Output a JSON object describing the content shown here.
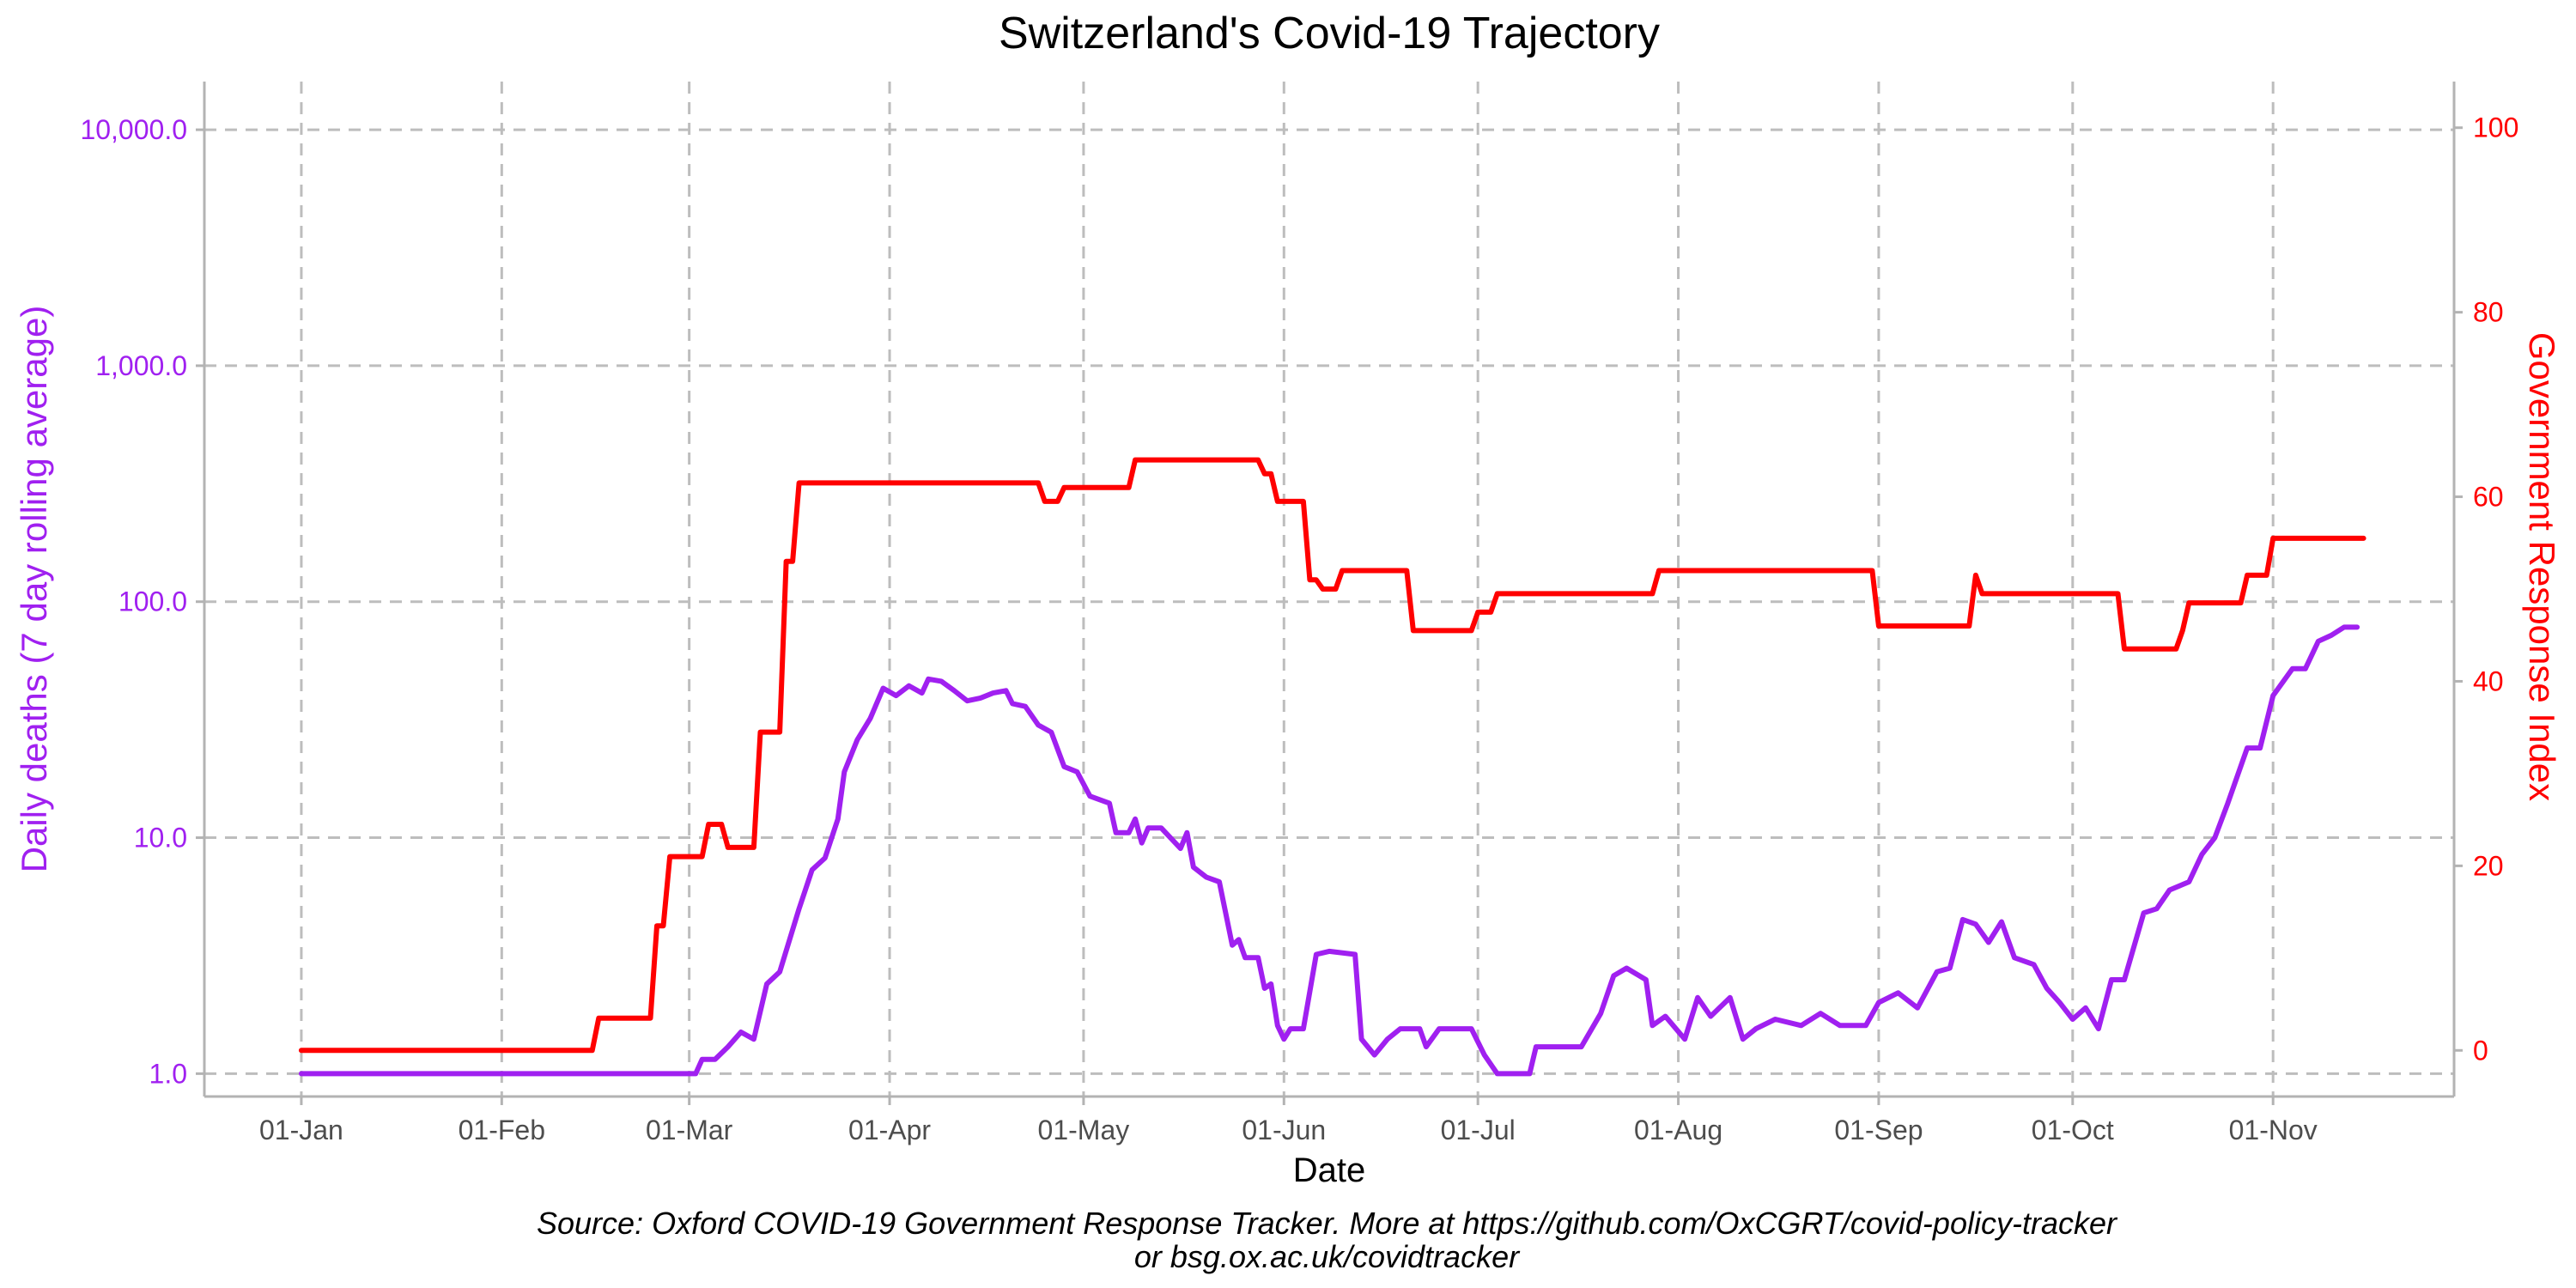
{
  "chart_data": {
    "type": "line",
    "title": "Switzerland's Covid-19 Trajectory",
    "xlabel": "Date",
    "ylabel_left": "Daily deaths (7 day rolling average)",
    "ylabel_right": "Government Response Index",
    "caption_line1": "Source: Oxford COVID-19 Government Response Tracker. More at https://github.com/OxCGRT/covid-policy-tracker",
    "caption_line2": "or bsg.ox.ac.uk/covidtracker",
    "grid": true,
    "colors": {
      "deaths": "#a020f0",
      "index": "#ff0000",
      "grid": "#bdbdbd",
      "axis": "#b3b3b3",
      "tick_text": "#4d4d4d"
    },
    "x_range": [
      "2019-12-17",
      "2020-11-29"
    ],
    "x_ticks": [
      {
        "date": "2020-01-01",
        "label": "01-Jan"
      },
      {
        "date": "2020-02-01",
        "label": "01-Feb"
      },
      {
        "date": "2020-03-01",
        "label": "01-Mar"
      },
      {
        "date": "2020-04-01",
        "label": "01-Apr"
      },
      {
        "date": "2020-05-01",
        "label": "01-May"
      },
      {
        "date": "2020-06-01",
        "label": "01-Jun"
      },
      {
        "date": "2020-07-01",
        "label": "01-Jul"
      },
      {
        "date": "2020-08-01",
        "label": "01-Aug"
      },
      {
        "date": "2020-09-01",
        "label": "01-Sep"
      },
      {
        "date": "2020-10-01",
        "label": "01-Oct"
      },
      {
        "date": "2020-11-01",
        "label": "01-Nov"
      }
    ],
    "y_left": {
      "scale": "log10",
      "range": [
        0.8,
        16000
      ],
      "ticks": [
        {
          "value": 1,
          "label": "1.0"
        },
        {
          "value": 10,
          "label": "10.0"
        },
        {
          "value": 100,
          "label": "100.0"
        },
        {
          "value": 1000,
          "label": "1,000.0"
        },
        {
          "value": 10000,
          "label": "10,000.0"
        }
      ]
    },
    "y_right": {
      "scale": "linear",
      "range": [
        -5,
        105
      ],
      "ticks": [
        {
          "value": 0,
          "label": "0"
        },
        {
          "value": 20,
          "label": "20"
        },
        {
          "value": 40,
          "label": "40"
        },
        {
          "value": 60,
          "label": "60"
        },
        {
          "value": 80,
          "label": "80"
        },
        {
          "value": 100,
          "label": "100"
        }
      ]
    },
    "series": [
      {
        "name": "Daily deaths (7 day rolling average)",
        "axis": "left",
        "color": "#a020f0",
        "points": [
          [
            "2020-01-01",
            1.0
          ],
          [
            "2020-03-02",
            1.0
          ],
          [
            "2020-03-03",
            1.15
          ],
          [
            "2020-03-05",
            1.15
          ],
          [
            "2020-03-07",
            1.3
          ],
          [
            "2020-03-09",
            1.5
          ],
          [
            "2020-03-11",
            1.4
          ],
          [
            "2020-03-13",
            2.4
          ],
          [
            "2020-03-15",
            2.7
          ],
          [
            "2020-03-18",
            5.0
          ],
          [
            "2020-03-20",
            7.3
          ],
          [
            "2020-03-22",
            8.2
          ],
          [
            "2020-03-24",
            12.0
          ],
          [
            "2020-03-25",
            19.0
          ],
          [
            "2020-03-27",
            26.0
          ],
          [
            "2020-03-29",
            32.0
          ],
          [
            "2020-03-31",
            43.0
          ],
          [
            "2020-04-02",
            40.0
          ],
          [
            "2020-04-04",
            44.0
          ],
          [
            "2020-04-06",
            41.0
          ],
          [
            "2020-04-07",
            47.0
          ],
          [
            "2020-04-09",
            46.0
          ],
          [
            "2020-04-11",
            42.0
          ],
          [
            "2020-04-13",
            38.0
          ],
          [
            "2020-04-15",
            39.0
          ],
          [
            "2020-04-17",
            41.0
          ],
          [
            "2020-04-19",
            42.0
          ],
          [
            "2020-04-20",
            37.0
          ],
          [
            "2020-04-22",
            36.0
          ],
          [
            "2020-04-24",
            30.0
          ],
          [
            "2020-04-26",
            28.0
          ],
          [
            "2020-04-28",
            20.0
          ],
          [
            "2020-04-30",
            19.0
          ],
          [
            "2020-05-02",
            15.0
          ],
          [
            "2020-05-05",
            14.0
          ],
          [
            "2020-05-06",
            10.5
          ],
          [
            "2020-05-08",
            10.5
          ],
          [
            "2020-05-09",
            12.0
          ],
          [
            "2020-05-10",
            9.5
          ],
          [
            "2020-05-11",
            11.0
          ],
          [
            "2020-05-13",
            11.0
          ],
          [
            "2020-05-16",
            9.0
          ],
          [
            "2020-05-17",
            10.5
          ],
          [
            "2020-05-18",
            7.5
          ],
          [
            "2020-05-20",
            6.8
          ],
          [
            "2020-05-22",
            6.5
          ],
          [
            "2020-05-24",
            3.5
          ],
          [
            "2020-05-25",
            3.7
          ],
          [
            "2020-05-26",
            3.1
          ],
          [
            "2020-05-28",
            3.1
          ],
          [
            "2020-05-29",
            2.3
          ],
          [
            "2020-05-30",
            2.4
          ],
          [
            "2020-05-31",
            1.6
          ],
          [
            "2020-06-01",
            1.4
          ],
          [
            "2020-06-02",
            1.55
          ],
          [
            "2020-06-04",
            1.55
          ],
          [
            "2020-06-06",
            3.2
          ],
          [
            "2020-06-08",
            3.3
          ],
          [
            "2020-06-12",
            3.2
          ],
          [
            "2020-06-13",
            1.4
          ],
          [
            "2020-06-15",
            1.2
          ],
          [
            "2020-06-17",
            1.4
          ],
          [
            "2020-06-19",
            1.55
          ],
          [
            "2020-06-22",
            1.55
          ],
          [
            "2020-06-23",
            1.3
          ],
          [
            "2020-06-25",
            1.55
          ],
          [
            "2020-06-27",
            1.55
          ],
          [
            "2020-06-30",
            1.55
          ],
          [
            "2020-07-02",
            1.2
          ],
          [
            "2020-07-04",
            1.0
          ],
          [
            "2020-07-09",
            1.0
          ],
          [
            "2020-07-10",
            1.3
          ],
          [
            "2020-07-17",
            1.3
          ],
          [
            "2020-07-20",
            1.8
          ],
          [
            "2020-07-22",
            2.6
          ],
          [
            "2020-07-24",
            2.8
          ],
          [
            "2020-07-27",
            2.5
          ],
          [
            "2020-07-28",
            1.6
          ],
          [
            "2020-07-30",
            1.75
          ],
          [
            "2020-08-02",
            1.4
          ],
          [
            "2020-08-04",
            2.1
          ],
          [
            "2020-08-06",
            1.75
          ],
          [
            "2020-08-09",
            2.1
          ],
          [
            "2020-08-11",
            1.4
          ],
          [
            "2020-08-13",
            1.55
          ],
          [
            "2020-08-16",
            1.7
          ],
          [
            "2020-08-20",
            1.6
          ],
          [
            "2020-08-23",
            1.8
          ],
          [
            "2020-08-26",
            1.6
          ],
          [
            "2020-08-30",
            1.6
          ],
          [
            "2020-09-01",
            2.0
          ],
          [
            "2020-09-04",
            2.2
          ],
          [
            "2020-09-07",
            1.9
          ],
          [
            "2020-09-10",
            2.7
          ],
          [
            "2020-09-12",
            2.8
          ],
          [
            "2020-09-14",
            4.5
          ],
          [
            "2020-09-16",
            4.3
          ],
          [
            "2020-09-18",
            3.6
          ],
          [
            "2020-09-20",
            4.4
          ],
          [
            "2020-09-22",
            3.1
          ],
          [
            "2020-09-25",
            2.9
          ],
          [
            "2020-09-27",
            2.3
          ],
          [
            "2020-09-29",
            2.0
          ],
          [
            "2020-10-01",
            1.7
          ],
          [
            "2020-10-03",
            1.9
          ],
          [
            "2020-10-05",
            1.55
          ],
          [
            "2020-10-07",
            2.5
          ],
          [
            "2020-10-09",
            2.5
          ],
          [
            "2020-10-12",
            4.8
          ],
          [
            "2020-10-14",
            5.0
          ],
          [
            "2020-10-16",
            6.0
          ],
          [
            "2020-10-19",
            6.5
          ],
          [
            "2020-10-21",
            8.5
          ],
          [
            "2020-10-23",
            10.0
          ],
          [
            "2020-10-25",
            14.0
          ],
          [
            "2020-10-28",
            24.0
          ],
          [
            "2020-10-30",
            24.0
          ],
          [
            "2020-11-01",
            40.0
          ],
          [
            "2020-11-04",
            52.0
          ],
          [
            "2020-11-06",
            52.0
          ],
          [
            "2020-11-08",
            68.0
          ],
          [
            "2020-11-10",
            72.0
          ],
          [
            "2020-11-12",
            78.0
          ],
          [
            "2020-11-14",
            78.0
          ]
        ]
      },
      {
        "name": "Government Response Index",
        "axis": "right",
        "color": "#ff0000",
        "step": true,
        "points": [
          [
            "2020-01-01",
            0
          ],
          [
            "2020-02-15",
            0
          ],
          [
            "2020-02-16",
            3.5
          ],
          [
            "2020-02-24",
            3.5
          ],
          [
            "2020-02-25",
            13.5
          ],
          [
            "2020-02-26",
            13.5
          ],
          [
            "2020-02-27",
            21
          ],
          [
            "2020-03-03",
            21
          ],
          [
            "2020-03-04",
            24.5
          ],
          [
            "2020-03-06",
            24.5
          ],
          [
            "2020-03-07",
            22
          ],
          [
            "2020-03-11",
            22
          ],
          [
            "2020-03-12",
            34.5
          ],
          [
            "2020-03-15",
            34.5
          ],
          [
            "2020-03-16",
            53
          ],
          [
            "2020-03-17",
            53
          ],
          [
            "2020-03-18",
            61.5
          ],
          [
            "2020-04-24",
            61.5
          ],
          [
            "2020-04-25",
            59.5
          ],
          [
            "2020-04-27",
            59.5
          ],
          [
            "2020-04-28",
            61
          ],
          [
            "2020-05-08",
            61
          ],
          [
            "2020-05-09",
            64
          ],
          [
            "2020-05-28",
            64
          ],
          [
            "2020-05-29",
            62.5
          ],
          [
            "2020-05-30",
            62.5
          ],
          [
            "2020-05-31",
            59.5
          ],
          [
            "2020-06-04",
            59.5
          ],
          [
            "2020-06-05",
            51
          ],
          [
            "2020-06-06",
            51
          ],
          [
            "2020-06-07",
            50
          ],
          [
            "2020-06-09",
            50
          ],
          [
            "2020-06-10",
            52
          ],
          [
            "2020-06-20",
            52
          ],
          [
            "2020-06-21",
            45.5
          ],
          [
            "2020-06-30",
            45.5
          ],
          [
            "2020-07-01",
            47.5
          ],
          [
            "2020-07-03",
            47.5
          ],
          [
            "2020-07-04",
            49.5
          ],
          [
            "2020-07-28",
            49.5
          ],
          [
            "2020-07-29",
            52
          ],
          [
            "2020-08-31",
            52
          ],
          [
            "2020-09-01",
            46
          ],
          [
            "2020-09-15",
            46
          ],
          [
            "2020-09-16",
            51.5
          ],
          [
            "2020-09-17",
            49.5
          ],
          [
            "2020-10-08",
            49.5
          ],
          [
            "2020-10-09",
            43.5
          ],
          [
            "2020-10-17",
            43.5
          ],
          [
            "2020-10-18",
            45.5
          ],
          [
            "2020-10-19",
            48.5
          ],
          [
            "2020-10-27",
            48.5
          ],
          [
            "2020-10-28",
            51.5
          ],
          [
            "2020-10-31",
            51.5
          ],
          [
            "2020-11-01",
            55.5
          ],
          [
            "2020-11-15",
            55.5
          ]
        ]
      }
    ]
  }
}
